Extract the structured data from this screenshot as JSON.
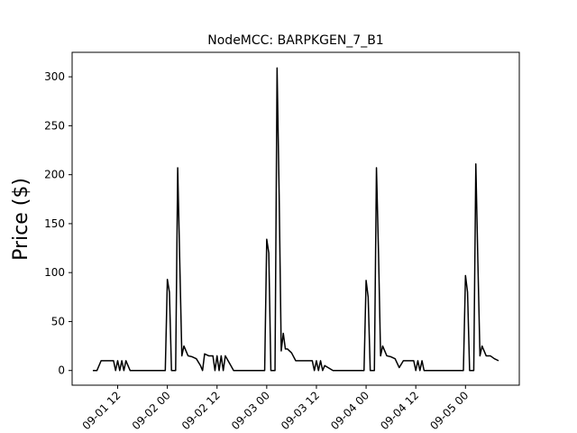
{
  "chart_data": {
    "type": "line",
    "title": "NodeMCC: BARPKGEN_7_B1",
    "xlabel": "",
    "ylabel": "Price ($)",
    "ylim": [
      -15,
      325
    ],
    "xlim": [
      "2018-09-01 01:00",
      "2018-09-05 13:00"
    ],
    "grid": false,
    "x_tick_labels": [
      "09-01 12",
      "09-02 00",
      "09-02 12",
      "09-03 00",
      "09-03 12",
      "09-04 00",
      "09-04 12",
      "09-05 00"
    ],
    "y_ticks": [
      0,
      50,
      100,
      150,
      200,
      250,
      300
    ],
    "line_color": "#000000",
    "series": [
      {
        "x": [
          "2018-09-01 06:00",
          "2018-09-01 07:00",
          "2018-09-01 08:00",
          "2018-09-01 09:00",
          "2018-09-01 10:00",
          "2018-09-01 11:00",
          "2018-09-01 11:30",
          "2018-09-01 12:00",
          "2018-09-01 12:30",
          "2018-09-01 13:00",
          "2018-09-01 13:30",
          "2018-09-01 14:00",
          "2018-09-01 14:30",
          "2018-09-01 15:00",
          "2018-09-01 16:00",
          "2018-09-01 18:00",
          "2018-09-01 20:00",
          "2018-09-01 22:00",
          "2018-09-01 23:30",
          "2018-09-02 00:00",
          "2018-09-02 00:30",
          "2018-09-02 01:00",
          "2018-09-02 02:00",
          "2018-09-02 02:30",
          "2018-09-02 03:00",
          "2018-09-02 03:30",
          "2018-09-02 04:00",
          "2018-09-02 05:00",
          "2018-09-02 06:00",
          "2018-09-02 07:00",
          "2018-09-02 08:00",
          "2018-09-02 08:30",
          "2018-09-02 09:00",
          "2018-09-02 10:00",
          "2018-09-02 10:30",
          "2018-09-02 11:00",
          "2018-09-02 11:30",
          "2018-09-02 12:00",
          "2018-09-02 12:30",
          "2018-09-02 13:00",
          "2018-09-02 13:30",
          "2018-09-02 14:00",
          "2018-09-02 16:00",
          "2018-09-02 18:00",
          "2018-09-02 20:00",
          "2018-09-02 22:00",
          "2018-09-02 23:30",
          "2018-09-03 00:00",
          "2018-09-03 00:30",
          "2018-09-03 01:00",
          "2018-09-03 02:00",
          "2018-09-03 02:30",
          "2018-09-03 03:00",
          "2018-09-03 03:30",
          "2018-09-03 04:00",
          "2018-09-03 04:30",
          "2018-09-03 05:00",
          "2018-09-03 06:00",
          "2018-09-03 07:00",
          "2018-09-03 08:00",
          "2018-09-03 09:00",
          "2018-09-03 10:00",
          "2018-09-03 11:00",
          "2018-09-03 11:30",
          "2018-09-03 12:00",
          "2018-09-03 12:30",
          "2018-09-03 13:00",
          "2018-09-03 13:30",
          "2018-09-03 14:00",
          "2018-09-03 16:00",
          "2018-09-03 18:00",
          "2018-09-03 20:00",
          "2018-09-03 22:00",
          "2018-09-03 23:30",
          "2018-09-04 00:00",
          "2018-09-04 00:30",
          "2018-09-04 01:00",
          "2018-09-04 02:00",
          "2018-09-04 02:30",
          "2018-09-04 03:00",
          "2018-09-04 03:30",
          "2018-09-04 04:00",
          "2018-09-04 05:00",
          "2018-09-04 06:00",
          "2018-09-04 07:00",
          "2018-09-04 08:00",
          "2018-09-04 09:00",
          "2018-09-04 10:00",
          "2018-09-04 11:00",
          "2018-09-04 11:30",
          "2018-09-04 12:00",
          "2018-09-04 12:30",
          "2018-09-04 13:00",
          "2018-09-04 13:30",
          "2018-09-04 14:00",
          "2018-09-04 16:00",
          "2018-09-04 18:00",
          "2018-09-04 20:00",
          "2018-09-04 22:00",
          "2018-09-04 23:30",
          "2018-09-05 00:00",
          "2018-09-05 00:30",
          "2018-09-05 01:00",
          "2018-09-05 02:00",
          "2018-09-05 02:30",
          "2018-09-05 03:00",
          "2018-09-05 03:30",
          "2018-09-05 04:00",
          "2018-09-05 05:00",
          "2018-09-05 06:00",
          "2018-09-05 07:00",
          "2018-09-05 08:00"
        ],
        "values": [
          0,
          0,
          10,
          10,
          10,
          10,
          0,
          10,
          0,
          10,
          0,
          10,
          5,
          0,
          0,
          0,
          0,
          0,
          0,
          93,
          80,
          0,
          0,
          207,
          110,
          15,
          25,
          15,
          14,
          12,
          5,
          0,
          17,
          15,
          15,
          15,
          0,
          15,
          0,
          15,
          0,
          15,
          0,
          0,
          0,
          0,
          0,
          134,
          120,
          0,
          0,
          309,
          180,
          20,
          38,
          22,
          22,
          18,
          10,
          10,
          10,
          10,
          10,
          0,
          10,
          0,
          10,
          0,
          5,
          0,
          0,
          0,
          0,
          0,
          92,
          75,
          0,
          0,
          207,
          120,
          15,
          25,
          15,
          14,
          12,
          3,
          10,
          10,
          10,
          10,
          0,
          10,
          0,
          10,
          0,
          0,
          0,
          0,
          0,
          0,
          97,
          80,
          0,
          0,
          211,
          110,
          15,
          25,
          15,
          15,
          12,
          10
        ]
      }
    ]
  }
}
